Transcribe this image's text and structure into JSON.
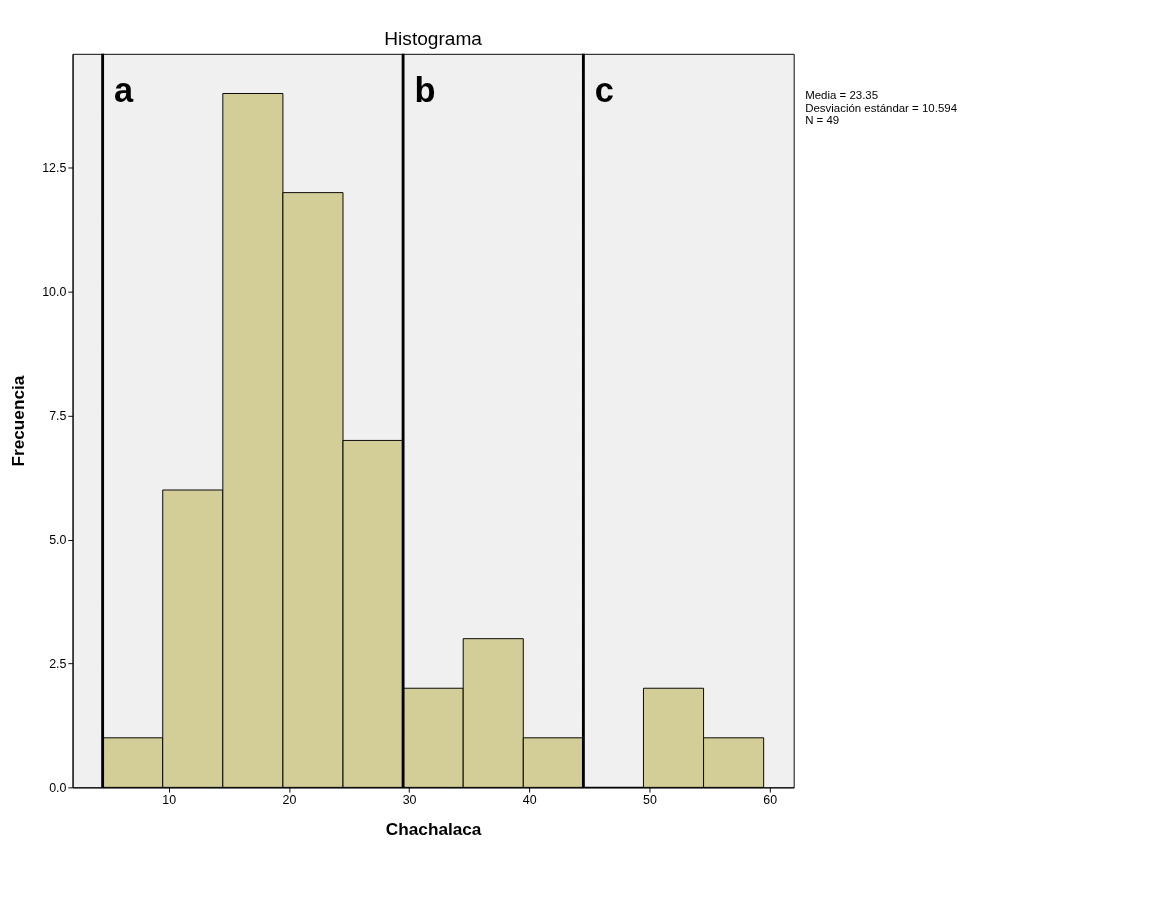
{
  "chart_data": {
    "type": "histogram",
    "title": "Histograma",
    "xlabel": "Chachalaca",
    "ylabel": "Frecuencia",
    "bins": [
      4.5,
      9.5,
      14.5,
      19.5,
      24.5,
      29.5,
      34.5,
      39.5,
      44.5,
      49.5,
      54.5,
      59.5
    ],
    "values": [
      1,
      6,
      14,
      12,
      7,
      2,
      3,
      1,
      0,
      2,
      1
    ],
    "color": "#d3ce97",
    "xlim": [
      2,
      62
    ],
    "xticks": [
      10,
      20,
      30,
      40,
      50,
      60
    ],
    "ylim": [
      0,
      14.8
    ],
    "yticks": [
      {
        "value": 0,
        "label": "0.0"
      },
      {
        "value": 2.5,
        "label": "2.5"
      },
      {
        "value": 5,
        "label": "5.0"
      },
      {
        "value": 7.5,
        "label": "7.5"
      },
      {
        "value": 10,
        "label": "10.0"
      },
      {
        "value": 12.5,
        "label": "12.5"
      }
    ],
    "grid": false,
    "ref_lines": [
      {
        "axis": "x",
        "value": 4.5,
        "label": "a",
        "color": "#000000"
      },
      {
        "axis": "x",
        "value": 29.5,
        "label": "b",
        "color": "#000000"
      },
      {
        "axis": "x",
        "value": 44.5,
        "label": "c",
        "color": "#000000"
      }
    ],
    "annotations": [
      "Media = 23.35",
      "Desviación estándar = 10.594",
      "N = 49"
    ]
  }
}
